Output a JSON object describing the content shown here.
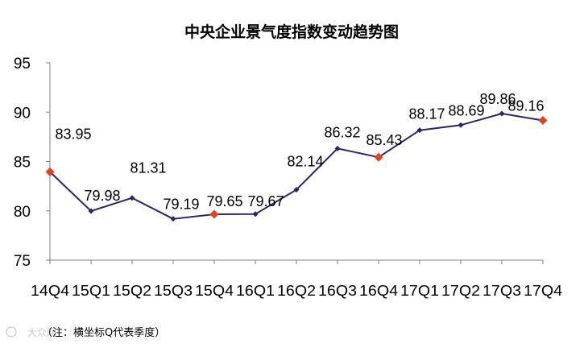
{
  "chart_data": {
    "type": "line",
    "title": "中央企业景气度指数变动趋势图",
    "categories": [
      "14Q4",
      "15Q1",
      "15Q2",
      "15Q3",
      "15Q4",
      "16Q1",
      "16Q2",
      "16Q3",
      "16Q4",
      "17Q1",
      "17Q2",
      "17Q3",
      "17Q4"
    ],
    "values": [
      83.95,
      79.98,
      81.31,
      79.19,
      79.65,
      79.67,
      82.14,
      86.32,
      85.43,
      88.17,
      88.69,
      89.86,
      89.16
    ],
    "data_labels": [
      "83.95",
      "79.98",
      "81.31",
      "79.19",
      "79.65",
      "79.67",
      "82.14",
      "86.32",
      "85.43",
      "88.17",
      "88.69",
      "89.86",
      "89.16"
    ],
    "highlight_indices": [
      0,
      4,
      8,
      12
    ],
    "ylim": [
      75,
      95
    ],
    "yticks": [
      "75",
      "80",
      "85",
      "90",
      "95"
    ],
    "grid": false,
    "legend": "none",
    "colors": {
      "line": "#2e2370",
      "marker": "#2e2370",
      "highlight": "#e8401c",
      "axis": "#7f7f7f"
    }
  },
  "note": "（注：横坐标Q代表季度）",
  "watermark": "大众网"
}
